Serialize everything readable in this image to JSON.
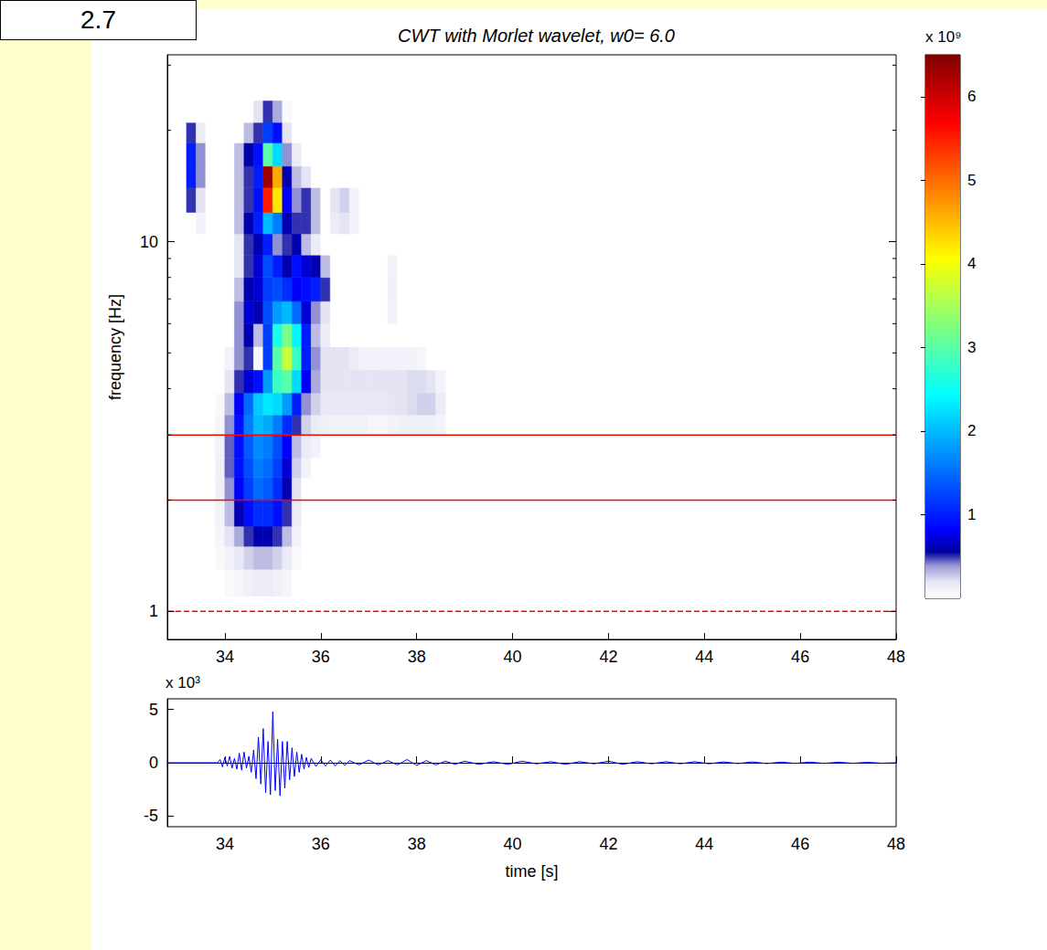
{
  "page_label": "2.7",
  "chart_data": [
    {
      "type": "heatmap",
      "title": "CWT with Morlet wavelet, w0= 6.0",
      "y_label": "frequency [Hz]",
      "log": "y",
      "grid": false,
      "xlim": [
        32.8,
        48
      ],
      "xticks": [
        34,
        36,
        38,
        40,
        42,
        44,
        46,
        48
      ],
      "ylim": [
        0.84,
        32
      ],
      "yticks": [
        1,
        10
      ],
      "yticks_minor": [
        2,
        3,
        4,
        5,
        6,
        7,
        8,
        9,
        20,
        30
      ],
      "x_bins": [
        33.2,
        33.4,
        33.6,
        33.8,
        34.0,
        34.2,
        34.4,
        34.6,
        34.8,
        35.0,
        35.2,
        35.4,
        35.6,
        35.8,
        36.0,
        36.2,
        36.4,
        36.6,
        36.8,
        37.0,
        37.2,
        37.4,
        37.6,
        37.8,
        38.0,
        38.2,
        38.4,
        38.6
      ],
      "y_bins": [
        1.1,
        1.3,
        1.5,
        1.7,
        2.0,
        2.3,
        2.6,
        3.0,
        3.4,
        3.9,
        4.5,
        5.2,
        6.0,
        6.9,
        8.0,
        9.2,
        10.5,
        12.0,
        14.0,
        16.0,
        18.5,
        21.0,
        24.0
      ],
      "cells": [
        [
          0,
          0,
          0,
          0,
          0.05,
          0.08,
          0.12,
          0.15,
          0.15,
          0.12,
          0.08,
          0,
          0,
          0,
          0,
          0,
          0,
          0,
          0,
          0,
          0,
          0,
          0,
          0,
          0,
          0,
          0
        ],
        [
          0,
          0,
          0,
          0.05,
          0.1,
          0.18,
          0.25,
          0.3,
          0.3,
          0.25,
          0.15,
          0.05,
          0,
          0,
          0,
          0,
          0,
          0,
          0,
          0,
          0,
          0,
          0,
          0,
          0,
          0,
          0
        ],
        [
          0,
          0,
          0,
          0.08,
          0.2,
          0.35,
          0.5,
          0.6,
          0.6,
          0.5,
          0.3,
          0.1,
          0,
          0,
          0,
          0,
          0,
          0,
          0,
          0,
          0,
          0,
          0,
          0,
          0,
          0,
          0
        ],
        [
          0,
          0,
          0,
          0.1,
          0.3,
          0.6,
          0.9,
          1.1,
          1.1,
          0.9,
          0.5,
          0.15,
          0,
          0,
          0,
          0,
          0,
          0,
          0,
          0,
          0,
          0,
          0,
          0,
          0,
          0,
          0
        ],
        [
          0,
          0,
          0,
          0.12,
          0.4,
          0.8,
          1.2,
          1.5,
          1.4,
          1.1,
          0.6,
          0.2,
          0,
          0,
          0,
          0,
          0,
          0,
          0,
          0,
          0,
          0,
          0,
          0,
          0,
          0,
          0
        ],
        [
          0,
          0,
          0,
          0.12,
          0.45,
          0.9,
          1.3,
          1.6,
          1.5,
          1.2,
          0.7,
          0.25,
          0.1,
          0,
          0,
          0,
          0,
          0,
          0,
          0,
          0,
          0,
          0,
          0,
          0,
          0,
          0
        ],
        [
          0,
          0,
          0,
          0.1,
          0.45,
          0.9,
          1.4,
          1.7,
          1.6,
          1.3,
          0.8,
          0.3,
          0.15,
          0.1,
          0,
          0,
          0,
          0,
          0,
          0,
          0,
          0,
          0,
          0,
          0,
          0,
          0
        ],
        [
          0,
          0,
          0,
          0.08,
          0.4,
          0.9,
          1.6,
          2.0,
          1.9,
          1.6,
          1.1,
          0.5,
          0.25,
          0.15,
          0.12,
          0.1,
          0.1,
          0.1,
          0.1,
          0.08,
          0.08,
          0.1,
          0.12,
          0.12,
          0.12,
          0.12,
          0.1
        ],
        [
          0,
          0,
          0,
          0.05,
          0.3,
          0.8,
          1.5,
          2.1,
          2.3,
          2.2,
          1.8,
          1.0,
          0.4,
          0.25,
          0.18,
          0.18,
          0.18,
          0.18,
          0.18,
          0.18,
          0.18,
          0.2,
          0.2,
          0.22,
          0.25,
          0.25,
          0.15
        ],
        [
          0,
          0,
          0,
          0,
          0.2,
          0.5,
          0.7,
          0.9,
          1.8,
          2.8,
          3.0,
          2.2,
          0.8,
          0.35,
          0.2,
          0.2,
          0.2,
          0.2,
          0.2,
          0.2,
          0.2,
          0.2,
          0.2,
          0.22,
          0.22,
          0.2,
          0.1
        ],
        [
          0,
          0,
          0,
          0,
          0.1,
          0.4,
          0.5,
          0.05,
          1.2,
          3.0,
          3.7,
          2.8,
          1.0,
          0.4,
          0.2,
          0.2,
          0.2,
          0.15,
          0.1,
          0.1,
          0.1,
          0.1,
          0.1,
          0.1,
          0.08,
          0,
          0
        ],
        [
          0,
          0,
          0,
          0,
          0,
          0.4,
          0.6,
          0.3,
          1.2,
          2.6,
          3.2,
          2.4,
          1.0,
          0.3,
          0.15,
          0,
          0,
          0,
          0,
          0,
          0,
          0,
          0,
          0,
          0,
          0,
          0
        ],
        [
          0,
          0,
          0,
          0,
          0,
          0.4,
          0.7,
          0.6,
          1.3,
          1.8,
          2.0,
          1.5,
          0.7,
          0.4,
          0.2,
          0,
          0,
          0,
          0,
          0,
          0,
          0.1,
          0,
          0,
          0,
          0,
          0
        ],
        [
          0,
          0,
          0,
          0,
          0,
          0.3,
          0.6,
          0.7,
          1.2,
          1.3,
          1.1,
          0.8,
          0.9,
          1.0,
          0.5,
          0,
          0,
          0,
          0,
          0,
          0,
          0.12,
          0,
          0,
          0,
          0,
          0
        ],
        [
          0,
          0,
          0,
          0,
          0,
          0.2,
          0.5,
          0.7,
          1.3,
          1.0,
          0.6,
          0.9,
          0.7,
          0.6,
          0.3,
          0,
          0,
          0,
          0,
          0,
          0,
          0.1,
          0,
          0,
          0,
          0,
          0
        ],
        [
          0,
          0,
          0,
          0,
          0,
          0.2,
          0.5,
          0.6,
          1.0,
          0.4,
          0.5,
          0.6,
          0.3,
          0.15,
          0,
          0,
          0,
          0,
          0,
          0,
          0,
          0,
          0,
          0,
          0,
          0,
          0
        ],
        [
          0,
          0.1,
          0,
          0,
          0,
          0.3,
          0.6,
          1.0,
          2.0,
          1.6,
          0.6,
          0.5,
          0.5,
          0.3,
          0,
          0.15,
          0.2,
          0.1,
          0,
          0,
          0,
          0,
          0,
          0,
          0,
          0,
          0
        ],
        [
          0.5,
          0.2,
          0,
          0,
          0,
          0.3,
          0.5,
          0.9,
          5.5,
          4.2,
          0.8,
          0.4,
          0.5,
          0.3,
          0,
          0.2,
          0.25,
          0.1,
          0,
          0,
          0,
          0,
          0,
          0,
          0,
          0,
          0
        ],
        [
          1.0,
          0.4,
          0,
          0,
          0,
          0.3,
          0.5,
          1.0,
          6.3,
          4.6,
          0.6,
          0.3,
          0.2,
          0,
          0,
          0,
          0,
          0,
          0,
          0,
          0,
          0,
          0,
          0,
          0,
          0,
          0
        ],
        [
          1.0,
          0.4,
          0,
          0,
          0,
          0.3,
          0.6,
          0.9,
          3.0,
          2.2,
          0.4,
          0.15,
          0,
          0,
          0,
          0,
          0,
          0,
          0,
          0,
          0,
          0,
          0,
          0,
          0,
          0,
          0
        ],
        [
          0.5,
          0.15,
          0,
          0,
          0,
          0,
          0.3,
          0.5,
          1.2,
          0.9,
          0.2,
          0,
          0,
          0,
          0,
          0,
          0,
          0,
          0,
          0,
          0,
          0,
          0,
          0,
          0,
          0,
          0
        ],
        [
          0,
          0,
          0,
          0,
          0,
          0,
          0,
          0.2,
          0.5,
          0.35,
          0.05,
          0,
          0,
          0,
          0,
          0,
          0,
          0,
          0,
          0,
          0,
          0,
          0,
          0,
          0,
          0,
          0
        ]
      ],
      "colorbar": {
        "range": [
          0,
          6.5
        ],
        "ticks": [
          1,
          2,
          3,
          4,
          5,
          6
        ],
        "label": "x 10⁹"
      },
      "lines": [
        {
          "y": 3,
          "color": "#ff0000",
          "line_style": "solid"
        },
        {
          "y": 2,
          "color": "#ff0000",
          "line_style": "solid"
        },
        {
          "y": 1,
          "color": "#ff0000",
          "line_style": "dashed"
        }
      ]
    },
    {
      "type": "line",
      "x_label": "time [s]",
      "y_scale_label": "x 10³",
      "grid": false,
      "xlim": [
        32.8,
        48
      ],
      "xticks": [
        34,
        36,
        38,
        40,
        42,
        44,
        46,
        48
      ],
      "ylim": [
        -6,
        6
      ],
      "yticks": [
        -5,
        0,
        5
      ],
      "series": [
        {
          "color": "#0000ff",
          "x": [
            32.8,
            33.85,
            33.9,
            33.95,
            34.0,
            34.05,
            34.1,
            34.15,
            34.2,
            34.25,
            34.3,
            34.35,
            34.4,
            34.45,
            34.5,
            34.55,
            34.6,
            34.65,
            34.7,
            34.75,
            34.8,
            34.85,
            34.9,
            34.95,
            35.0,
            35.05,
            35.1,
            35.15,
            35.2,
            35.25,
            35.3,
            35.35,
            35.4,
            35.45,
            35.5,
            35.55,
            35.6,
            35.65,
            35.7,
            35.75,
            35.8,
            35.9,
            36.0,
            36.1,
            36.2,
            36.3,
            36.4,
            36.5,
            36.6,
            36.8,
            37.0,
            37.2,
            37.4,
            37.6,
            37.8,
            38.0,
            38.2,
            38.4,
            38.6,
            38.8,
            39.0,
            39.3,
            39.6,
            39.9,
            40.2,
            40.5,
            40.8,
            41.1,
            41.4,
            41.7,
            42.0,
            42.3,
            42.6,
            42.9,
            43.2,
            43.5,
            43.8,
            44.1,
            44.4,
            44.7,
            45.0,
            45.3,
            45.6,
            45.9,
            46.2,
            46.5,
            46.8,
            47.1,
            47.4,
            47.7,
            48.0
          ],
          "values": [
            0,
            0,
            0.3,
            -0.4,
            0.5,
            -0.3,
            0.6,
            -0.5,
            0.4,
            -0.6,
            0.9,
            -0.7,
            1.0,
            -0.5,
            0.6,
            -0.9,
            1.2,
            -1.5,
            2.4,
            -2.0,
            3.2,
            -2.8,
            2.0,
            -3.0,
            4.8,
            -2.6,
            2.2,
            -3.1,
            2.0,
            -2.4,
            2.0,
            -1.6,
            1.4,
            -1.3,
            1.0,
            -0.9,
            0.8,
            -0.6,
            0.5,
            -0.45,
            0.4,
            -0.35,
            0.3,
            -0.3,
            0.25,
            -0.3,
            0.2,
            -0.25,
            0.2,
            -0.2,
            0.25,
            -0.2,
            0.2,
            -0.2,
            0.3,
            -0.25,
            0.2,
            -0.2,
            0.15,
            -0.15,
            0.15,
            -0.15,
            0.1,
            -0.15,
            0.15,
            -0.1,
            0.1,
            -0.15,
            0.1,
            -0.1,
            0.15,
            -0.15,
            0.1,
            -0.1,
            0.1,
            -0.1,
            0.1,
            -0.1,
            0.08,
            -0.08,
            0.08,
            -0.08,
            0.06,
            -0.06,
            0.06,
            -0.06,
            0.05,
            -0.05,
            0.04,
            -0.04,
            0
          ]
        }
      ]
    }
  ]
}
